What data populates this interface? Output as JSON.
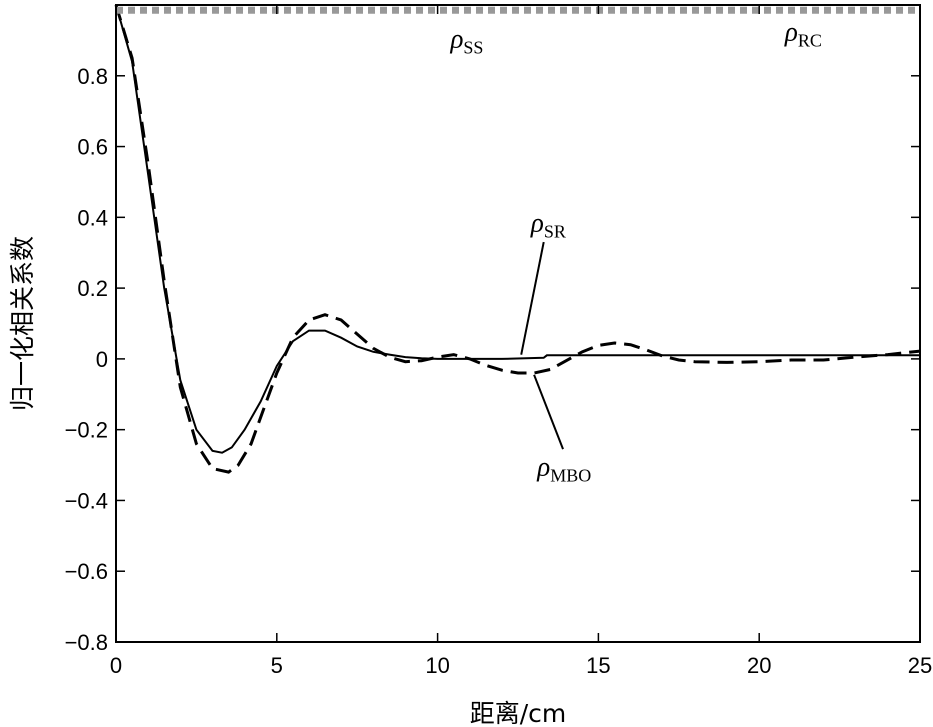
{
  "chart_data": {
    "type": "line",
    "title": "",
    "xlabel": "距离/cm",
    "ylabel": "归一化相关系数",
    "xlim": [
      0,
      25
    ],
    "ylim": [
      -0.8,
      1.0
    ],
    "xticks": [
      "0",
      "5",
      "10",
      "15",
      "20",
      "25"
    ],
    "yticks": [
      "−0.8",
      "−0.6",
      "−0.4",
      "−0.2",
      "0",
      "0.2",
      "0.4",
      "0.6",
      "0.8"
    ],
    "grid": false,
    "legend": "none",
    "series": [
      {
        "name": "ρSS",
        "style": "solid",
        "color": "#000000",
        "x": [
          0,
          0.5,
          1.0,
          1.5,
          2.0,
          2.5,
          3.0,
          3.3,
          3.6,
          4.0,
          4.5,
          5.0,
          5.5,
          6.0,
          6.5,
          7.0,
          7.5,
          8.0,
          8.5,
          9.0,
          9.5,
          10.0,
          11.0,
          12.0,
          13.3,
          13.4,
          14.0,
          15.0,
          16.0,
          18.0,
          20.0,
          22.0,
          25.0
        ],
        "y": [
          1.0,
          0.84,
          0.52,
          0.2,
          -0.06,
          -0.2,
          -0.26,
          -0.265,
          -0.25,
          -0.2,
          -0.12,
          -0.02,
          0.05,
          0.08,
          0.08,
          0.06,
          0.035,
          0.02,
          0.012,
          0.005,
          0.002,
          0.0,
          0.0,
          0.0,
          0.003,
          0.01,
          0.01,
          0.01,
          0.01,
          0.01,
          0.01,
          0.01,
          0.01
        ]
      },
      {
        "name": "ρMBO",
        "style": "dashed",
        "color": "#000000",
        "x": [
          0,
          0.5,
          1.0,
          1.5,
          2.0,
          2.5,
          3.0,
          3.5,
          3.8,
          4.2,
          4.6,
          5.0,
          5.5,
          6.0,
          6.5,
          7.0,
          7.5,
          8.0,
          8.5,
          9.0,
          9.5,
          10.0,
          10.5,
          11.0,
          11.5,
          12.0,
          12.5,
          13.0,
          13.5,
          14.0,
          14.5,
          15.0,
          15.5,
          16.0,
          16.5,
          17.0,
          17.5,
          18.0,
          19.0,
          20.0,
          21.0,
          22.0,
          23.0,
          24.0,
          25.0
        ],
        "y": [
          1.0,
          0.85,
          0.55,
          0.22,
          -0.08,
          -0.24,
          -0.31,
          -0.32,
          -0.3,
          -0.24,
          -0.14,
          -0.04,
          0.06,
          0.11,
          0.125,
          0.11,
          0.07,
          0.03,
          0.005,
          -0.008,
          -0.005,
          0.005,
          0.012,
          0.0,
          -0.018,
          -0.032,
          -0.04,
          -0.04,
          -0.03,
          -0.005,
          0.02,
          0.038,
          0.045,
          0.04,
          0.025,
          0.008,
          -0.003,
          -0.008,
          -0.01,
          -0.008,
          -0.003,
          -0.003,
          0.005,
          0.012,
          0.022
        ]
      },
      {
        "name": "ρRC",
        "style": "thick-dotted",
        "color": "#999999",
        "x": [
          0,
          25
        ],
        "y": [
          0.985,
          0.985
        ]
      }
    ],
    "annotations": [
      {
        "id": "rho-ss",
        "base": "ρ",
        "sub": "SS",
        "x": 10.4,
        "y": 0.88
      },
      {
        "id": "rho-rc",
        "base": "ρ",
        "sub": "RC",
        "x": 20.8,
        "y": 0.9
      },
      {
        "id": "rho-sr",
        "base": "ρ",
        "sub": "SR",
        "x": 12.9,
        "y": 0.36,
        "arrow_to": [
          12.6,
          0.012
        ],
        "arrow_from": [
          13.3,
          0.33
        ]
      },
      {
        "id": "rho-mbo",
        "base": "ρ",
        "sub": "MBO",
        "x": 13.1,
        "y": -0.33,
        "arrow_to": [
          13.0,
          -0.045
        ],
        "arrow_from": [
          13.9,
          -0.255
        ]
      }
    ]
  }
}
